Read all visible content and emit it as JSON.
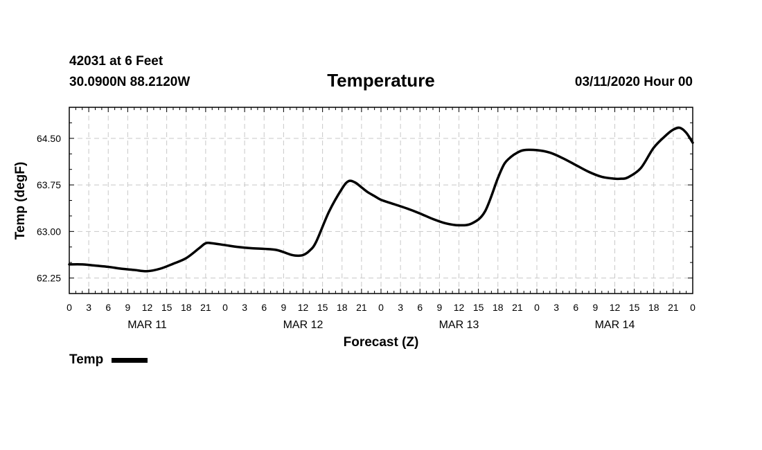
{
  "header": {
    "station": "42031 at 6 Feet",
    "location": "30.0900N 88.2120W",
    "timestamp": "03/11/2020 Hour 00"
  },
  "chart_data": {
    "type": "line",
    "title": "Temperature",
    "xlabel": "Forecast (Z)",
    "ylabel": "Temp (degF)",
    "x_units": "forecast hour from 03/11/2020 00Z",
    "xlim": [
      0,
      96
    ],
    "ylim": [
      62.0,
      65.0
    ],
    "yticks": [
      "62.25",
      "63.00",
      "63.75",
      "64.50"
    ],
    "xtick_labels": [
      "0",
      "3",
      "6",
      "9",
      "12",
      "15",
      "18",
      "21",
      "0",
      "3",
      "6",
      "9",
      "12",
      "15",
      "18",
      "21",
      "0",
      "3",
      "6",
      "9",
      "12",
      "15",
      "18",
      "21",
      "0",
      "3",
      "6",
      "9",
      "12",
      "15",
      "18",
      "21",
      "0"
    ],
    "day_labels": [
      "MAR 11",
      "MAR 12",
      "MAR 13",
      "MAR 14"
    ],
    "grid": true,
    "legend": "bottom-left",
    "series": [
      {
        "name": "Temp",
        "color": "#000000",
        "x": [
          0,
          2,
          4,
          6,
          8,
          10,
          12,
          14,
          16,
          18,
          20,
          21,
          22,
          24,
          26,
          28,
          30,
          32,
          34,
          35,
          36,
          37,
          38,
          40,
          42,
          43,
          44,
          45,
          46,
          47,
          48,
          50,
          52,
          54,
          56,
          58,
          60,
          62,
          64,
          66,
          67,
          68,
          69,
          70,
          72,
          74,
          76,
          78,
          80,
          82,
          84,
          85,
          86,
          88,
          90,
          92,
          93,
          94,
          95,
          96
        ],
        "y": [
          62.47,
          62.47,
          62.45,
          62.43,
          62.4,
          62.38,
          62.36,
          62.4,
          62.48,
          62.57,
          62.73,
          62.81,
          62.81,
          62.78,
          62.75,
          62.73,
          62.72,
          62.7,
          62.63,
          62.61,
          62.62,
          62.69,
          62.83,
          63.32,
          63.69,
          63.81,
          63.79,
          63.71,
          63.63,
          63.57,
          63.51,
          63.44,
          63.37,
          63.29,
          63.2,
          63.13,
          63.1,
          63.13,
          63.32,
          63.86,
          64.09,
          64.2,
          64.27,
          64.31,
          64.31,
          64.27,
          64.18,
          64.07,
          63.96,
          63.88,
          63.85,
          63.85,
          63.87,
          64.02,
          64.35,
          64.56,
          64.64,
          64.67,
          64.59,
          64.43
        ]
      }
    ]
  }
}
